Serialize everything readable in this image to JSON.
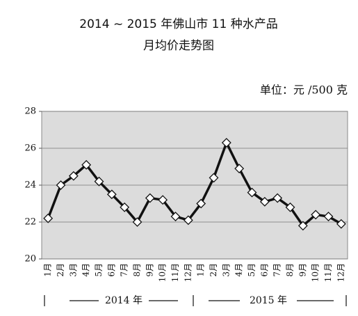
{
  "chart_data": {
    "type": "line",
    "title": [
      "2014 ~ 2015 年佛山市 11 种水产品",
      "月均价走势图"
    ],
    "unit": "单位：元 /500 克",
    "categories": [
      "1月",
      "2月",
      "3月",
      "4月",
      "5月",
      "6月",
      "7月",
      "8月",
      "9月",
      "10月",
      "11月",
      "12月",
      "1月",
      "2月",
      "3月",
      "4月",
      "5月",
      "6月",
      "7月",
      "8月",
      "9月",
      "10月",
      "11月",
      "12月"
    ],
    "values": [
      22.2,
      24.0,
      24.5,
      25.1,
      24.2,
      23.5,
      22.8,
      22.0,
      23.3,
      23.2,
      22.3,
      22.1,
      23.0,
      24.4,
      26.3,
      24.9,
      23.6,
      23.1,
      23.3,
      22.8,
      21.8,
      22.4,
      22.3,
      21.9
    ],
    "color": "#111111",
    "x_groups": [
      "2014 年",
      "2015 年"
    ],
    "ylim": [
      20,
      28
    ],
    "yticks": [
      20,
      22,
      24,
      26,
      28
    ],
    "grid": true
  }
}
